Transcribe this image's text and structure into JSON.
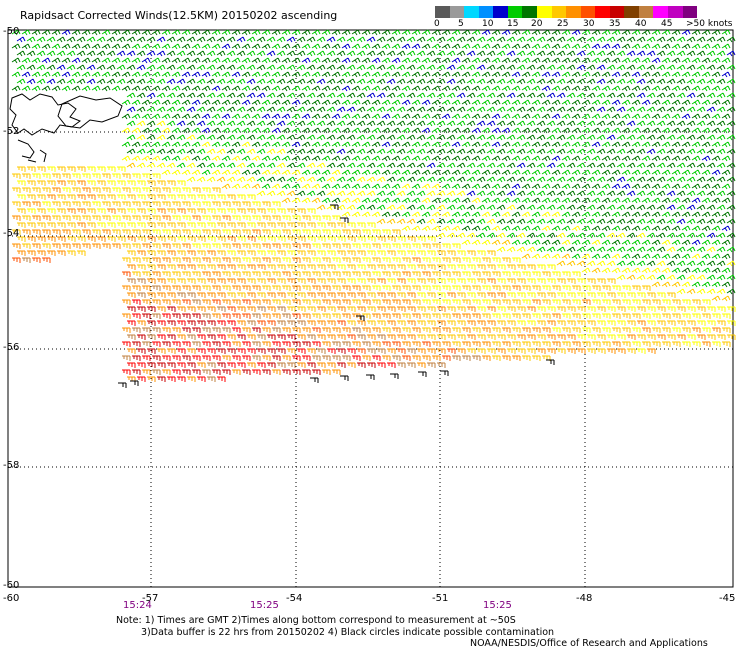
{
  "header": {
    "title": "Rapidsact Corrected Winds(12.5KM) 20150202 ascending"
  },
  "legend": {
    "colors": [
      "#5a5a5a",
      "#9a9a9a",
      "#00d8ff",
      "#0090ff",
      "#0000cc",
      "#00cc00",
      "#007700",
      "#ffff00",
      "#ffc800",
      "#ff9000",
      "#ff5000",
      "#ff0000",
      "#c80000",
      "#804000",
      "#c08040",
      "#ff00ff",
      "#c000c0",
      "#800080"
    ],
    "labels": [
      "0",
      "5",
      "10",
      "15",
      "20",
      "25",
      "30",
      "35",
      "40",
      "45",
      ">50 knots"
    ]
  },
  "map": {
    "lat_labels": [
      "-50",
      "-52",
      "-54",
      "-56",
      "-58",
      "-60"
    ],
    "lon_labels": [
      "-57",
      "-54",
      "-51",
      "-48",
      "-45"
    ],
    "corner_label": "-60",
    "times": [
      "15:24",
      "15:25",
      "15:25"
    ],
    "coastline": "falklands-coastline"
  },
  "footer": {
    "note_line1": "Note: 1) Times are GMT 2)Times along bottom correspond to measurement at ~50S",
    "note_line2": "3)Data buffer is 22 hrs from 20150202 4) Black circles indicate possible contamination",
    "credit": "NOAA/NESDIS/Office of Research and Applications"
  }
}
